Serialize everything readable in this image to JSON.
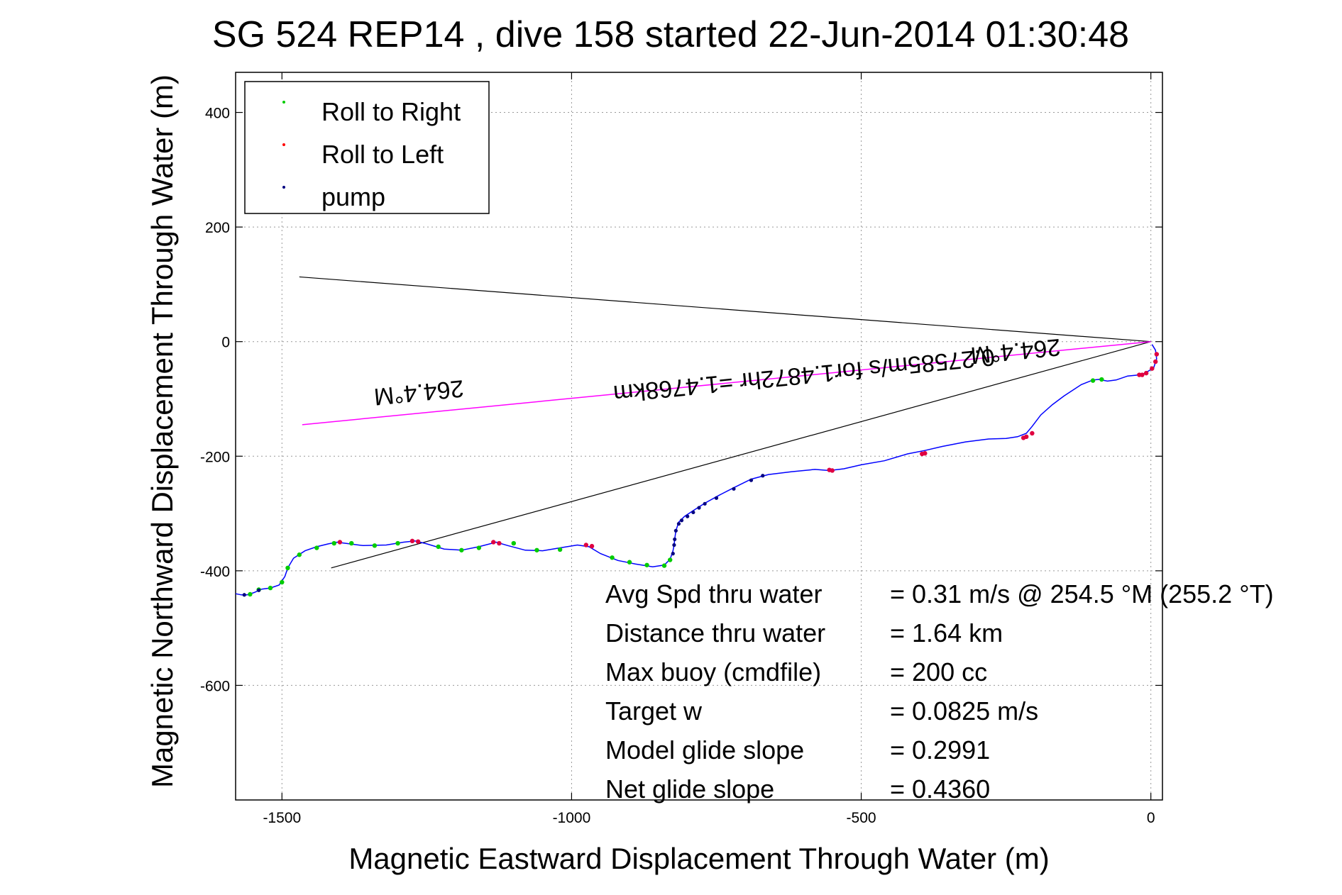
{
  "chart_data": {
    "type": "line",
    "title": "SG 524   REP14  , dive 158 started 22-Jun-2014 01:30:48",
    "xlabel": "Magnetic Eastward Displacement Through Water (m)",
    "ylabel": "Magnetic Northward Displacement Through Water (m)",
    "xlim": [
      -1580,
      20
    ],
    "ylim": [
      -800,
      470
    ],
    "xticks": [
      -1500,
      -1000,
      -500,
      0
    ],
    "yticks": [
      400,
      200,
      0,
      -200,
      -400,
      -600
    ],
    "xtick_labels": [
      "-1500",
      "-1000",
      "-500",
      "0"
    ],
    "ytick_labels": [
      "400",
      "200",
      "0",
      "-200",
      "-400",
      "-600"
    ],
    "grid": true,
    "legend_position": "top-left",
    "legend": [
      {
        "label": "Roll to Right",
        "color": "#00cc00"
      },
      {
        "label": "Roll to Left",
        "color": "#ff0000"
      },
      {
        "label": "pump",
        "color": "#000080"
      }
    ],
    "colors": {
      "track": "#0000ff",
      "roll_right": "#00cc00",
      "roll_left": "#e00040",
      "pump": "#000080",
      "heading_line": "#ff00ff",
      "reference_line": "#000000"
    },
    "track": {
      "x": [
        -1580,
        -1570,
        -1560,
        -1548,
        -1535,
        -1520,
        -1505,
        -1495,
        -1490,
        -1480,
        -1460,
        -1440,
        -1420,
        -1405,
        -1390,
        -1360,
        -1320,
        -1290,
        -1270,
        -1250,
        -1220,
        -1190,
        -1160,
        -1130,
        -1110,
        -1080,
        -1050,
        -1020,
        -990,
        -970,
        -950,
        -920,
        -890,
        -860,
        -840,
        -830,
        -825,
        -823,
        -822,
        -820,
        -815,
        -805,
        -790,
        -770,
        -745,
        -720,
        -690,
        -660,
        -620,
        -580,
        -555,
        -530,
        -500,
        -460,
        -420,
        -390,
        -360,
        -320,
        -280,
        -250,
        -230,
        -215,
        -205,
        -190,
        -170,
        -150,
        -120,
        -100,
        -90,
        -75,
        -60,
        -40,
        -20,
        -10,
        -2,
        5,
        10,
        8,
        2
      ],
      "y": [
        -440,
        -442,
        -442,
        -438,
        -432,
        -430,
        -425,
        -410,
        -395,
        -378,
        -365,
        -358,
        -353,
        -350,
        -352,
        -356,
        -355,
        -350,
        -348,
        -353,
        -362,
        -364,
        -358,
        -350,
        -356,
        -364,
        -365,
        -360,
        -355,
        -358,
        -370,
        -382,
        -388,
        -393,
        -390,
        -380,
        -365,
        -355,
        -345,
        -330,
        -315,
        -305,
        -295,
        -282,
        -268,
        -255,
        -240,
        -232,
        -227,
        -223,
        -225,
        -222,
        -215,
        -208,
        -196,
        -190,
        -183,
        -175,
        -170,
        -169,
        -166,
        -160,
        -148,
        -128,
        -110,
        -95,
        -75,
        -67,
        -66,
        -69,
        -67,
        -60,
        -58,
        -55,
        -50,
        -45,
        -30,
        -15,
        -5
      ]
    },
    "roll_right_points": {
      "x": [
        -1555,
        -1540,
        -1520,
        -1500,
        -1490,
        -1470,
        -1440,
        -1410,
        -1380,
        -1340,
        -1300,
        -1230,
        -1190,
        -1160,
        -1100,
        -1060,
        -1020,
        -930,
        -900,
        -870,
        -840,
        -830,
        -100,
        -85
      ],
      "y": [
        -441,
        -433,
        -430,
        -420,
        -395,
        -372,
        -360,
        -352,
        -352,
        -356,
        -352,
        -358,
        -364,
        -360,
        -352,
        -364,
        -363,
        -377,
        -385,
        -390,
        -391,
        -381,
        -68,
        -66
      ]
    },
    "roll_left_points": {
      "x": [
        -1400,
        -1275,
        -1265,
        -1135,
        -1125,
        -975,
        -965,
        -555,
        -550,
        -395,
        -390,
        -220,
        -215,
        -205,
        -20,
        -15,
        -8,
        2,
        8,
        10
      ],
      "y": [
        -350,
        -348,
        -349,
        -350,
        -352,
        -355,
        -357,
        -224,
        -225,
        -196,
        -195,
        -168,
        -166,
        -160,
        -58,
        -58,
        -55,
        -47,
        -35,
        -22
      ]
    },
    "pump_points": {
      "x": [
        -1565,
        -1540,
        -825,
        -823,
        -822,
        -820,
        -815,
        -810,
        -800,
        -790,
        -780,
        -770,
        -750,
        -720,
        -690,
        -670
      ],
      "y": [
        -442,
        -434,
        -370,
        -355,
        -345,
        -330,
        -318,
        -312,
        -305,
        -298,
        -290,
        -283,
        -273,
        -257,
        -242,
        -234
      ]
    },
    "reference_lines": [
      {
        "x": [
          0,
          -1470
        ],
        "y": [
          0,
          113
        ]
      },
      {
        "x": [
          0,
          -1415
        ],
        "y": [
          0,
          -395
        ]
      }
    ],
    "heading_line": {
      "x": [
        0,
        -1465
      ],
      "y": [
        0,
        -145
      ]
    },
    "annotations": [
      {
        "text": "264.4°M",
        "x": -1265,
        "y": -75,
        "rotation": 174.4
      },
      {
        "text": "264.4°M",
        "x": -235,
        "y": -3,
        "rotation": 174.4
      },
      {
        "text": "0.27585m/s for1.4872hr =1.4768km",
        "x": -600,
        "y": -45,
        "rotation": 174.4
      }
    ],
    "stats": [
      {
        "label": "Avg Spd thru water",
        "value": "=  0.31 m/s @ 254.5 °M (255.2 °T)"
      },
      {
        "label": "Distance thru water",
        "value": "=  1.64 km"
      },
      {
        "label": "Max buoy (cmdfile)",
        "value": "= 200 cc"
      },
      {
        "label": "Target w",
        "value": "= 0.0825 m/s"
      },
      {
        "label": "Model glide slope",
        "value": "= 0.2991"
      },
      {
        "label": "Net glide slope",
        "value": "= 0.4360"
      }
    ]
  }
}
